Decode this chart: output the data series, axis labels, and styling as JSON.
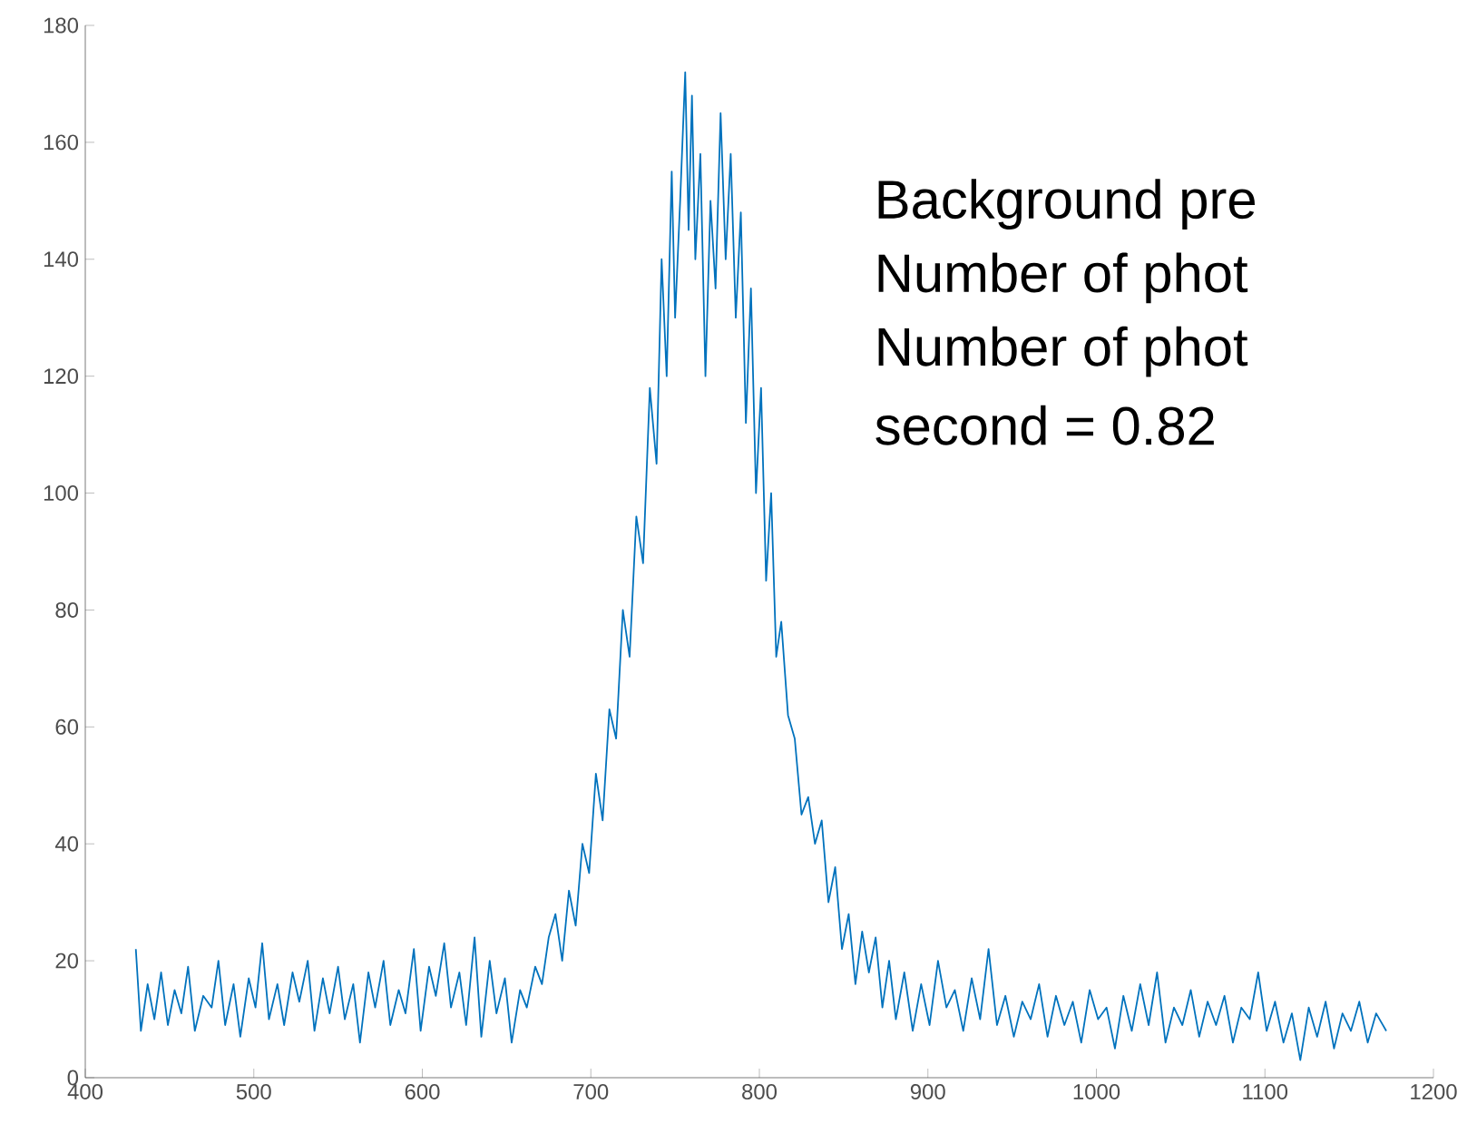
{
  "chart_data": {
    "type": "line",
    "x": [
      430,
      433,
      437,
      441,
      445,
      449,
      453,
      457,
      461,
      465,
      470,
      475,
      479,
      483,
      488,
      492,
      497,
      501,
      505,
      509,
      514,
      518,
      523,
      527,
      532,
      536,
      541,
      545,
      550,
      554,
      559,
      563,
      568,
      572,
      577,
      581,
      586,
      590,
      595,
      599,
      604,
      608,
      613,
      617,
      622,
      626,
      631,
      635,
      640,
      644,
      649,
      653,
      658,
      662,
      667,
      671,
      675,
      679,
      683,
      687,
      691,
      695,
      699,
      703,
      707,
      711,
      715,
      719,
      723,
      727,
      731,
      735,
      739,
      742,
      745,
      748,
      750,
      753,
      756,
      758,
      760,
      762,
      765,
      768,
      771,
      774,
      777,
      780,
      783,
      786,
      789,
      792,
      795,
      798,
      801,
      804,
      807,
      810,
      813,
      817,
      821,
      825,
      829,
      833,
      837,
      841,
      845,
      849,
      853,
      857,
      861,
      865,
      869,
      873,
      877,
      881,
      886,
      891,
      896,
      901,
      906,
      911,
      916,
      921,
      926,
      931,
      936,
      941,
      946,
      951,
      956,
      961,
      966,
      971,
      976,
      981,
      986,
      991,
      996,
      1001,
      1006,
      1011,
      1016,
      1021,
      1026,
      1031,
      1036,
      1041,
      1046,
      1051,
      1056,
      1061,
      1066,
      1071,
      1076,
      1081,
      1086,
      1091,
      1096,
      1101,
      1106,
      1111,
      1116,
      1121,
      1126,
      1131,
      1136,
      1141,
      1146,
      1151,
      1156,
      1161,
      1166,
      1172
    ],
    "values": [
      22,
      8,
      16,
      10,
      18,
      9,
      15,
      11,
      19,
      8,
      14,
      12,
      20,
      9,
      16,
      7,
      17,
      12,
      23,
      10,
      16,
      9,
      18,
      13,
      20,
      8,
      17,
      11,
      19,
      10,
      16,
      6,
      18,
      12,
      20,
      9,
      15,
      11,
      22,
      8,
      19,
      14,
      23,
      12,
      18,
      9,
      24,
      7,
      20,
      11,
      17,
      6,
      15,
      12,
      19,
      16,
      24,
      28,
      20,
      32,
      26,
      40,
      35,
      52,
      44,
      63,
      58,
      80,
      72,
      96,
      88,
      118,
      105,
      140,
      120,
      155,
      130,
      150,
      172,
      145,
      168,
      140,
      158,
      120,
      150,
      135,
      165,
      140,
      158,
      130,
      148,
      112,
      135,
      100,
      118,
      85,
      100,
      72,
      78,
      62,
      58,
      45,
      48,
      40,
      44,
      30,
      36,
      22,
      28,
      16,
      25,
      18,
      24,
      12,
      20,
      10,
      18,
      8,
      16,
      9,
      20,
      12,
      15,
      8,
      17,
      10,
      22,
      9,
      14,
      7,
      13,
      10,
      16,
      7,
      14,
      9,
      13,
      6,
      15,
      10,
      12,
      5,
      14,
      8,
      16,
      9,
      18,
      6,
      12,
      9,
      15,
      7,
      13,
      9,
      14,
      6,
      12,
      10,
      18,
      8,
      13,
      6,
      11,
      3,
      12,
      7,
      13,
      5,
      11,
      8,
      13,
      6,
      11,
      8
    ],
    "color": "#0072bd",
    "xlim": [
      400,
      1200
    ],
    "ylim": [
      0,
      180
    ],
    "xticks": [
      400,
      500,
      600,
      700,
      800,
      900,
      1000,
      1100,
      1200
    ],
    "yticks": [
      0,
      20,
      40,
      60,
      80,
      100,
      120,
      140,
      160,
      180
    ],
    "annotations": [
      "Background pre",
      "Number of phot",
      "Number of phot",
      "second =  0.82"
    ]
  }
}
